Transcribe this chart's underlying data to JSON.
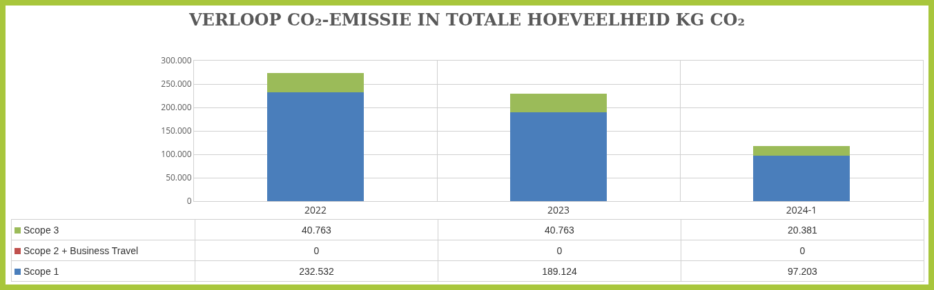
{
  "chart_data": {
    "type": "bar",
    "title": "VERLOOP CO₂-EMISSIE IN TOTALE HOEVEELHEID KG CO₂",
    "categories": [
      "2022",
      "2023",
      "2024-1"
    ],
    "stacked": true,
    "series": [
      {
        "name": "Scope 1",
        "color": "#4a7ebb",
        "values": [
          232532,
          189124,
          97203
        ],
        "value_labels": [
          "232.532",
          "189.124",
          "97.203"
        ]
      },
      {
        "name": "Scope 2 + Business Travel",
        "color": "#c0504d",
        "values": [
          0,
          0,
          0
        ],
        "value_labels": [
          "0",
          "0",
          "0"
        ]
      },
      {
        "name": "Scope 3",
        "color": "#9bbb59",
        "values": [
          40763,
          40763,
          20381
        ],
        "value_labels": [
          "40.763",
          "40.763",
          "20.381"
        ]
      }
    ],
    "ylim": [
      0,
      300000
    ],
    "yticks": [
      {
        "value": 0,
        "label": "0"
      },
      {
        "value": 50000,
        "label": "50.000"
      },
      {
        "value": 100000,
        "label": "100.000"
      },
      {
        "value": 150000,
        "label": "150.000"
      },
      {
        "value": 200000,
        "label": "200.000"
      },
      {
        "value": 250000,
        "label": "250.000"
      },
      {
        "value": 300000,
        "label": "300.000"
      }
    ],
    "grid": true,
    "legend": "bottom left"
  }
}
